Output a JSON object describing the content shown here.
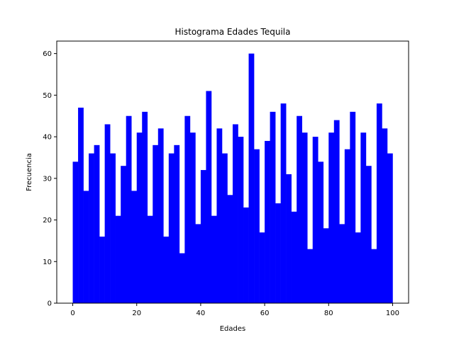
{
  "chart_data": {
    "type": "bar",
    "title": "Histograma Edades Tequila",
    "xlabel": "Edades",
    "ylabel": "Frecuencia",
    "xlim": [
      -5,
      105
    ],
    "ylim": [
      0,
      63
    ],
    "xticks": [
      0,
      20,
      40,
      60,
      80,
      100
    ],
    "yticks": [
      0,
      10,
      20,
      30,
      40,
      50,
      60
    ],
    "bin_start": 0,
    "bin_width": 1.6667,
    "values": [
      34,
      47,
      27,
      36,
      38,
      16,
      43,
      36,
      21,
      33,
      45,
      27,
      41,
      46,
      21,
      38,
      42,
      16,
      36,
      38,
      12,
      45,
      41,
      19,
      32,
      51,
      21,
      42,
      36,
      26,
      43,
      40,
      23,
      60,
      37,
      17,
      39,
      46,
      24,
      48,
      31,
      22,
      45,
      41,
      13,
      40,
      34,
      18,
      41,
      44,
      19,
      37,
      46,
      17,
      41,
      33,
      13,
      48,
      42,
      36
    ],
    "bar_color": "#0000ff",
    "grid": false,
    "legend": "none"
  }
}
